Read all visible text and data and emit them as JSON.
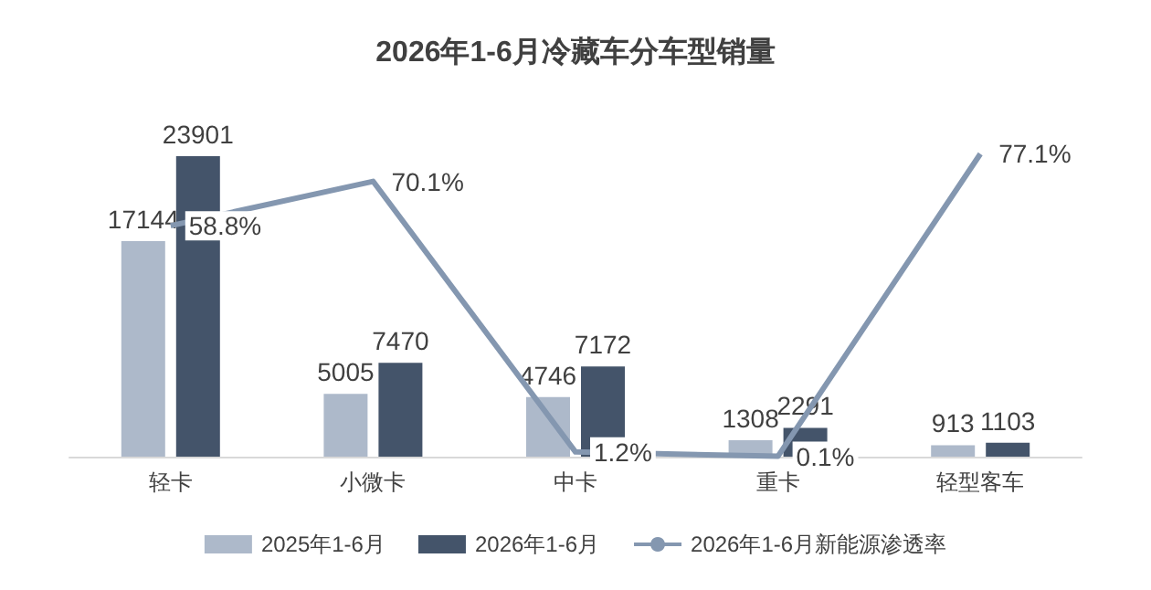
{
  "chart_data": {
    "type": "bar",
    "title": "2026年1-6月冷藏车分车型销量",
    "categories": [
      "轻卡",
      "小微卡",
      "中卡",
      "重卡",
      "轻型客车"
    ],
    "series": [
      {
        "name": "2025年1-6月",
        "color": "#adb9ca",
        "values": [
          17144,
          5005,
          4746,
          1308,
          913
        ]
      },
      {
        "name": "2026年1-6月",
        "color": "#44546a",
        "values": [
          23901,
          7470,
          7172,
          2291,
          1103
        ]
      },
      {
        "name": "2026年1-6月新能源渗透率",
        "type": "line",
        "axis": "y2",
        "color": "#8497b0",
        "values": [
          58.8,
          70.1,
          1.2,
          0.1,
          77.1
        ],
        "value_labels": [
          "58.8%",
          "70.1%",
          "1.2%",
          "0.1%",
          "77.1%"
        ]
      }
    ],
    "data_labels": true,
    "legend": "bottom",
    "marker": "none"
  }
}
